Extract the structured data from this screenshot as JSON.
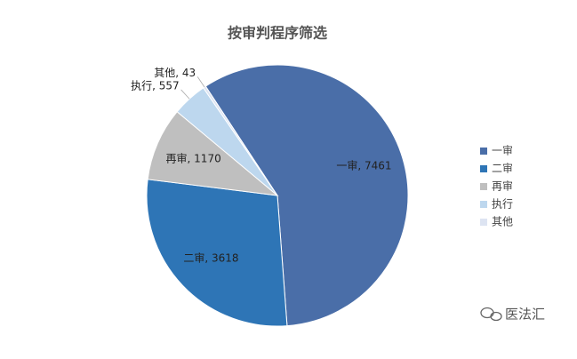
{
  "chart_data": {
    "type": "pie",
    "title": "按审判程序筛选",
    "categories": [
      "一审",
      "二审",
      "再审",
      "执行",
      "其他"
    ],
    "values": [
      7461,
      3618,
      1170,
      557,
      43
    ],
    "value_labels": [
      "一审, 7461",
      "二审, 3618",
      "再审, 1170",
      "执行, 557",
      "其他, 43"
    ],
    "colors": [
      "#4a6ea8",
      "#2e75b6",
      "#bfbfbf",
      "#bdd7ee",
      "#dde4f2"
    ],
    "legend": "right"
  },
  "watermark": "医法汇"
}
